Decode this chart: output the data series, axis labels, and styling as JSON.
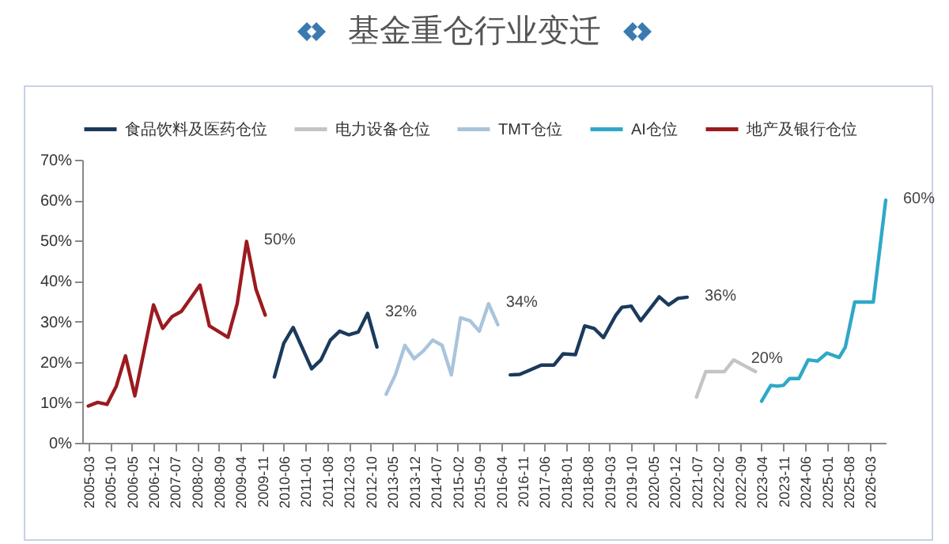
{
  "chart_data": {
    "type": "line",
    "title": "基金重仓行业变迁",
    "legend": "top",
    "grid": false,
    "marker": "none",
    "line_style": "solid",
    "xlim": [
      "2005-01",
      "2026-08"
    ],
    "xticks": [
      "2005-03",
      "2005-10",
      "2006-05",
      "2006-12",
      "2007-07",
      "2008-02",
      "2008-09",
      "2009-04",
      "2009-11",
      "2010-06",
      "2011-01",
      "2011-08",
      "2012-03",
      "2012-10",
      "2013-05",
      "2013-12",
      "2014-07",
      "2015-02",
      "2015-09",
      "2016-04",
      "2016-11",
      "2017-06",
      "2018-01",
      "2018-08",
      "2019-03",
      "2019-10",
      "2020-05",
      "2020-12",
      "2021-07",
      "2022-02",
      "2022-09",
      "2023-04",
      "2023-11",
      "2024-06",
      "2025-01",
      "2025-08",
      "2026-03"
    ],
    "ylim": [
      0,
      70
    ],
    "yticks": [
      {
        "value": 0,
        "label": "0%"
      },
      {
        "value": 10,
        "label": "10%"
      },
      {
        "value": 20,
        "label": "20%"
      },
      {
        "value": 30,
        "label": "30%"
      },
      {
        "value": 40,
        "label": "40%"
      },
      {
        "value": 50,
        "label": "50%"
      },
      {
        "value": 60,
        "label": "60%"
      },
      {
        "value": 70,
        "label": "70%"
      }
    ],
    "series": [
      {
        "name": "食品饮料及医药仓位",
        "color": "#1b3a5c",
        "x": [
          "2010-03",
          "2010-06",
          "2010-09",
          "2011-03",
          "2011-06",
          "2011-09",
          "2011-12",
          "2012-03",
          "2012-06",
          "2012-09",
          "2012-12",
          "2014-12",
          "2016-07",
          "2016-10",
          "2017-01",
          "2017-05",
          "2017-09",
          "2017-12",
          "2018-04",
          "2018-07",
          "2018-10",
          "2019-01",
          "2019-05",
          "2019-07",
          "2019-10",
          "2020-01",
          "2020-05",
          "2020-07",
          "2020-10",
          "2021-01",
          "2021-04"
        ],
        "values": [
          16.3,
          24.6,
          28.5,
          18.3,
          20.5,
          25.4,
          27.6,
          26.7,
          27.4,
          32.0,
          23.7,
          null,
          16.8,
          16.9,
          17.9,
          19.2,
          19.2,
          22.0,
          21.8,
          28.9,
          28.3,
          26.0,
          31.5,
          33.5,
          33.8,
          30.2,
          34.1,
          36.1,
          34.1,
          35.7,
          36.0
        ]
      },
      {
        "name": "电力设备仓位",
        "color": "#c4c4c4",
        "x": [
          "2021-07",
          "2021-10",
          "2022-04",
          "2022-07",
          "2023-02"
        ],
        "values": [
          11.3,
          17.6,
          17.6,
          20.5,
          17.6
        ]
      },
      {
        "name": "TMT仓位",
        "color": "#a9c4dc",
        "x": [
          "2013-03",
          "2013-06",
          "2013-09",
          "2013-12",
          "2014-03",
          "2014-06",
          "2014-09",
          "2014-12",
          "2015-03",
          "2015-06",
          "2015-09",
          "2015-12",
          "2016-03"
        ],
        "values": [
          12.0,
          16.9,
          24.1,
          20.8,
          22.7,
          25.4,
          24.1,
          16.8,
          30.9,
          30.2,
          27.6,
          34.4,
          29.2
        ]
      },
      {
        "name": "AI仓位",
        "color": "#2fa8c9",
        "x": [
          "2023-04",
          "2023-07",
          "2023-09",
          "2023-11",
          "2024-01",
          "2024-04",
          "2024-07",
          "2024-10",
          "2025-01",
          "2025-05",
          "2025-07",
          "2025-10",
          "2026-01",
          "2026-04",
          "2026-08"
        ],
        "values": [
          10.3,
          14.2,
          14.0,
          14.2,
          15.9,
          15.9,
          20.5,
          20.2,
          22.2,
          21.1,
          23.7,
          34.8,
          34.8,
          34.8,
          60
        ]
      },
      {
        "name": "地产及银行仓位",
        "color": "#9b1b1f",
        "x": [
          "2005-03",
          "2005-06",
          "2005-09",
          "2005-12",
          "2006-03",
          "2006-06",
          "2006-12",
          "2007-03",
          "2007-06",
          "2007-09",
          "2008-03",
          "2008-06",
          "2008-12",
          "2009-03",
          "2009-06",
          "2009-09",
          "2009-12"
        ],
        "values": [
          9.1,
          10.0,
          9.5,
          14.0,
          21.5,
          11.6,
          34.1,
          28.3,
          31.2,
          32.5,
          39.0,
          28.9,
          26.1,
          34.4,
          49.8,
          38.0,
          31.6
        ]
      }
    ],
    "annotations": [
      {
        "text": "50%",
        "x": "2009-06",
        "y": 49.8
      },
      {
        "text": "32%",
        "x": "2012-09",
        "y": 32.0
      },
      {
        "text": "34%",
        "x": "2015-12",
        "y": 34.4
      },
      {
        "text": "36%",
        "x": "2021-04",
        "y": 36.0
      },
      {
        "text": "20%",
        "x": "2022-07",
        "y": 20.5
      },
      {
        "text": "60%",
        "x": "2026-08",
        "y": 60
      }
    ]
  }
}
